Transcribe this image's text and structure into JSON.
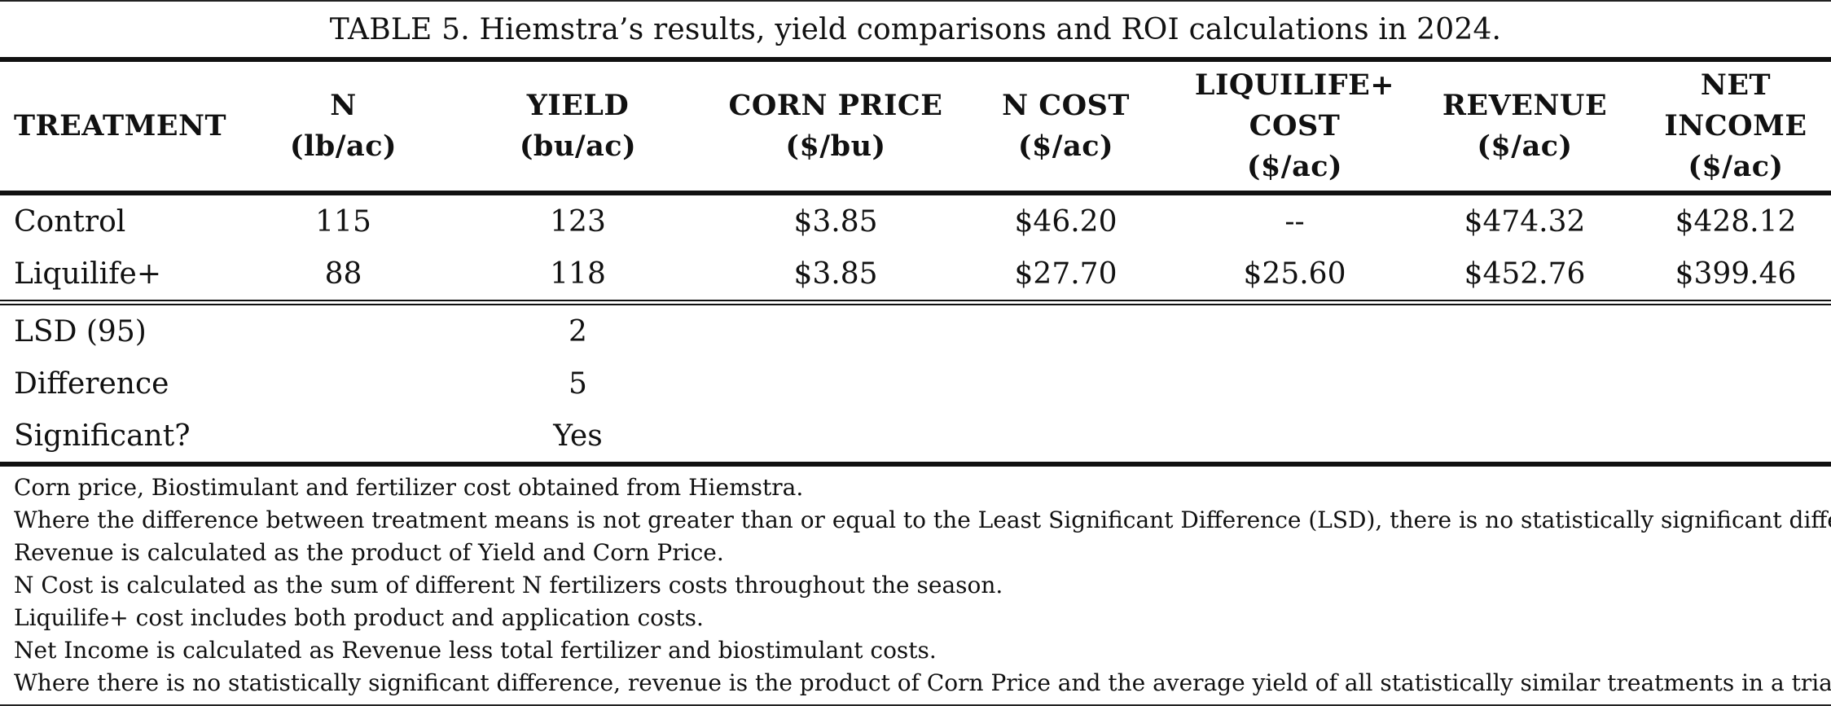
{
  "title": "TABLE 5. Hiemstra’s results, yield comparisons and ROI calculations in 2024.",
  "columns": [
    {
      "line1": "TREATMENT",
      "line2": "",
      "line3": ""
    },
    {
      "line1": "N",
      "line2": "(lb/ac)",
      "line3": ""
    },
    {
      "line1": "YIELD",
      "line2": "(bu/ac)",
      "line3": ""
    },
    {
      "line1": "CORN PRICE",
      "line2": "($/bu)",
      "line3": ""
    },
    {
      "line1": "N COST",
      "line2": "($/ac)",
      "line3": ""
    },
    {
      "line1": "LIQUILIFE+",
      "line2": "COST",
      "line3": "($/ac)"
    },
    {
      "line1": "REVENUE",
      "line2": "($/ac)",
      "line3": ""
    },
    {
      "line1": "NET",
      "line2": "INCOME",
      "line3": "($/ac)"
    }
  ],
  "rows": [
    [
      "Control",
      "115",
      "123",
      "$3.85",
      "$46.20",
      "--",
      "$474.32",
      "$428.12"
    ],
    [
      "Liquilife+",
      "88",
      "118",
      "$3.85",
      "$27.70",
      "$25.60",
      "$452.76",
      "$399.46"
    ]
  ],
  "stats": [
    {
      "label": "LSD (95)",
      "value": "2"
    },
    {
      "label": "Difference",
      "value": "5"
    },
    {
      "label": "Significant?",
      "value": "Yes"
    }
  ],
  "notes": [
    "Corn price, Biostimulant and fertilizer cost obtained from Hiemstra.",
    "Where the difference between treatment means is not greater than or equal to the Least Significant Difference (LSD), there is no statistically significant difference.",
    "Revenue is calculated as the product of Yield and Corn Price.",
    "N Cost is calculated as the sum of different N fertilizers costs throughout the season.",
    "Liquilife+ cost includes both product and application costs.",
    "Net Income is calculated as Revenue less total fertilizer and biostimulant costs.",
    "Where there is no statistically significant difference, revenue is the product of Corn Price and the average yield of all statistically similar treatments in a trial."
  ]
}
